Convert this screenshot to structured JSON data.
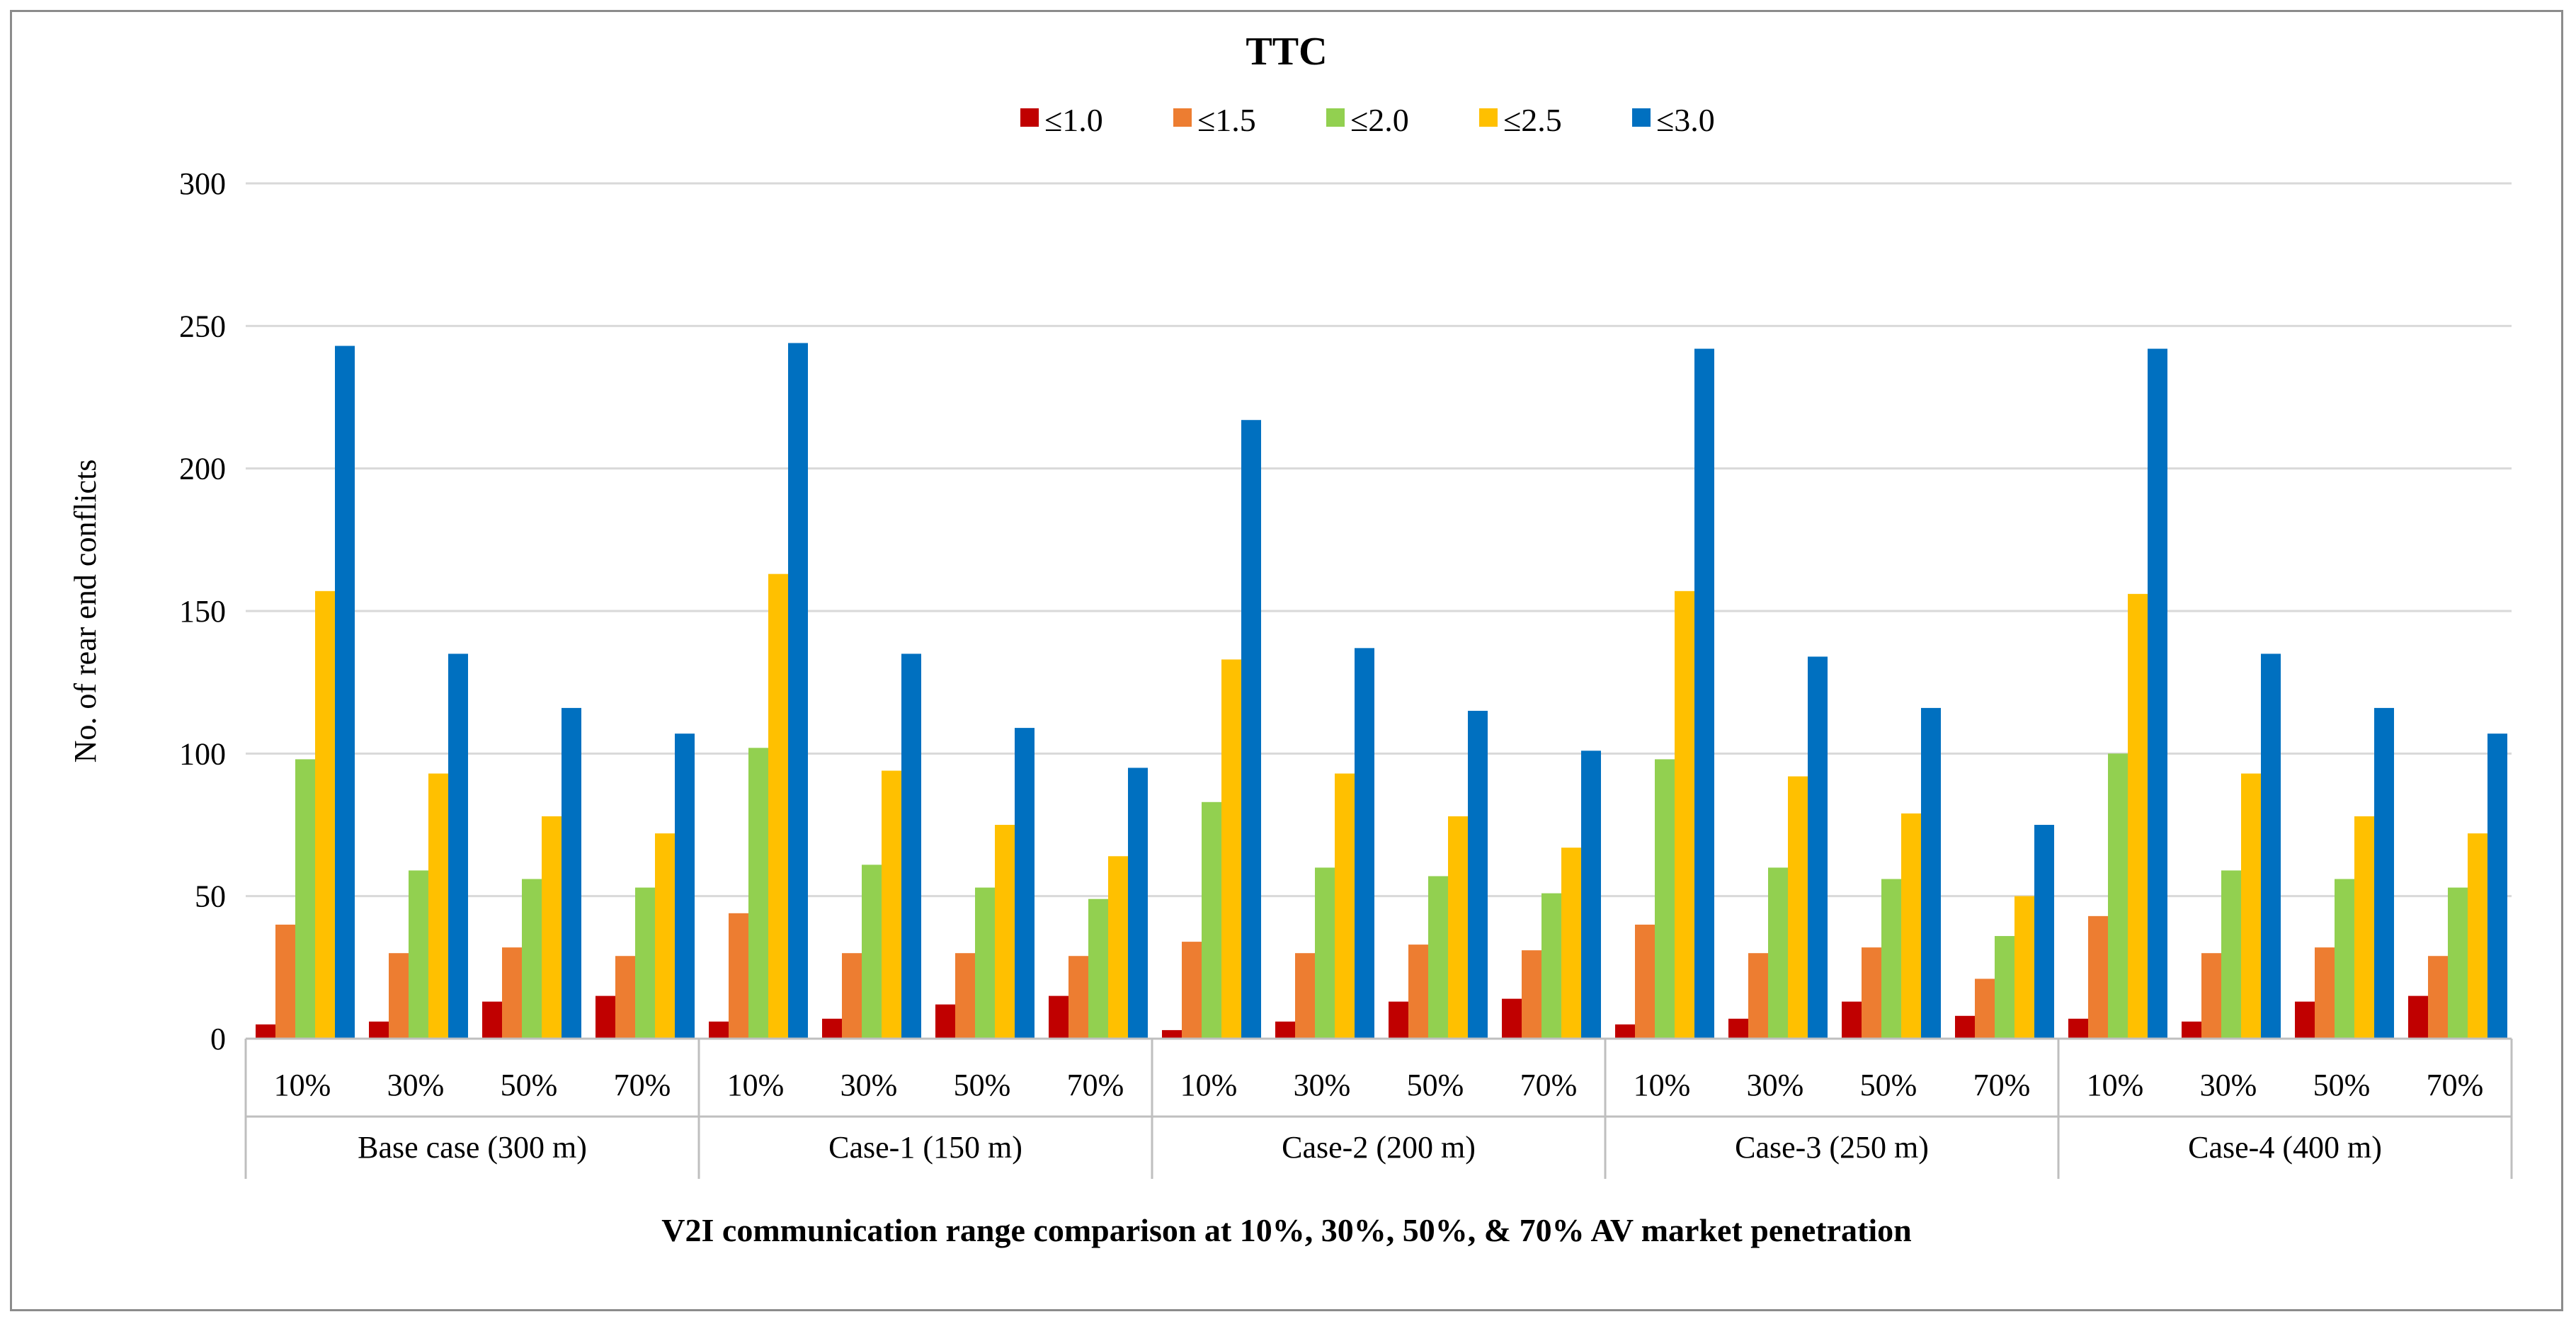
{
  "chart_data": {
    "type": "bar",
    "title": "TTC",
    "xlabel": "V2I communication range comparison at 10%, 30%, 50%, & 70% AV market penetration",
    "ylabel": "No. of rear end conflicts",
    "ylim": [
      0,
      300
    ],
    "yticks": [
      0,
      50,
      100,
      150,
      200,
      250,
      300
    ],
    "grid": true,
    "legend_position": "top-center",
    "groups": [
      "Base case (300 m)",
      "Case-1 (150 m)",
      "Case-2 (200 m)",
      "Case-3 (250 m)",
      "Case-4 (400 m)"
    ],
    "subcategories": [
      "10%",
      "30%",
      "50%",
      "70%"
    ],
    "categories": [
      "Base case (300 m) 10%",
      "Base case (300 m) 30%",
      "Base case (300 m) 50%",
      "Base case (300 m) 70%",
      "Case-1 (150 m) 10%",
      "Case-1 (150 m) 30%",
      "Case-1 (150 m) 50%",
      "Case-1 (150 m) 70%",
      "Case-2 (200 m) 10%",
      "Case-2 (200 m) 30%",
      "Case-2 (200 m) 50%",
      "Case-2 (200 m) 70%",
      "Case-3 (250 m) 10%",
      "Case-3 (250 m) 30%",
      "Case-3 (250 m) 50%",
      "Case-3 (250 m) 70%",
      "Case-4 (400 m) 10%",
      "Case-4 (400 m) 30%",
      "Case-4 (400 m) 50%",
      "Case-4 (400 m) 70%"
    ],
    "series": [
      {
        "name": "≤1.0",
        "color": "#c00000",
        "values": [
          5,
          6,
          13,
          15,
          6,
          7,
          12,
          15,
          3,
          6,
          13,
          14,
          5,
          7,
          13,
          8,
          7,
          6,
          13,
          15
        ]
      },
      {
        "name": "≤1.5",
        "color": "#ed7d31",
        "values": [
          40,
          30,
          32,
          29,
          44,
          30,
          30,
          29,
          34,
          30,
          33,
          31,
          40,
          30,
          32,
          21,
          43,
          30,
          32,
          29
        ]
      },
      {
        "name": "≤2.0",
        "color": "#92d050",
        "values": [
          98,
          59,
          56,
          53,
          102,
          61,
          53,
          49,
          83,
          60,
          57,
          51,
          98,
          60,
          56,
          36,
          100,
          59,
          56,
          53
        ]
      },
      {
        "name": "≤2.5",
        "color": "#ffc000",
        "values": [
          157,
          93,
          78,
          72,
          163,
          94,
          75,
          64,
          133,
          93,
          78,
          67,
          157,
          92,
          79,
          50,
          156,
          93,
          78,
          72
        ]
      },
      {
        "name": "≤3.0",
        "color": "#0070c0",
        "values": [
          243,
          135,
          116,
          107,
          244,
          135,
          109,
          95,
          217,
          137,
          115,
          101,
          242,
          134,
          116,
          75,
          242,
          135,
          116,
          107
        ]
      }
    ]
  }
}
